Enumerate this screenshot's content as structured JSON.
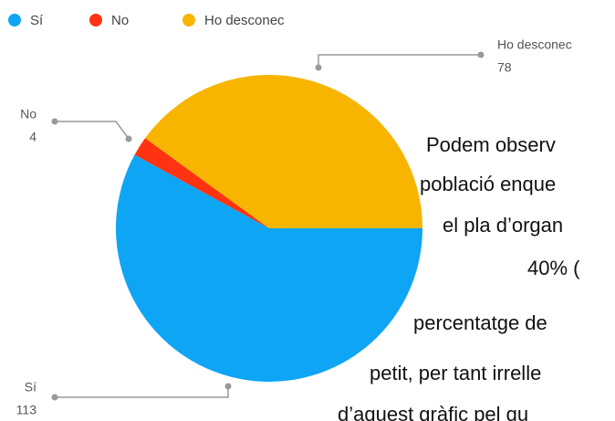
{
  "chart_data": {
    "type": "pie",
    "categories": [
      "Sí",
      "No",
      "Ho desconec"
    ],
    "values": [
      113,
      4,
      78
    ],
    "colors": [
      "#0ea5f5",
      "#ff3311",
      "#f7b500"
    ],
    "legend": "top-left"
  },
  "text": {
    "lines": [
      "Podem observ",
      "població enque",
      "el pla d’organ",
      "40% (",
      "percentatge de",
      "petit, per tant irrelle",
      "d’aquest gràfic pel qu"
    ]
  }
}
